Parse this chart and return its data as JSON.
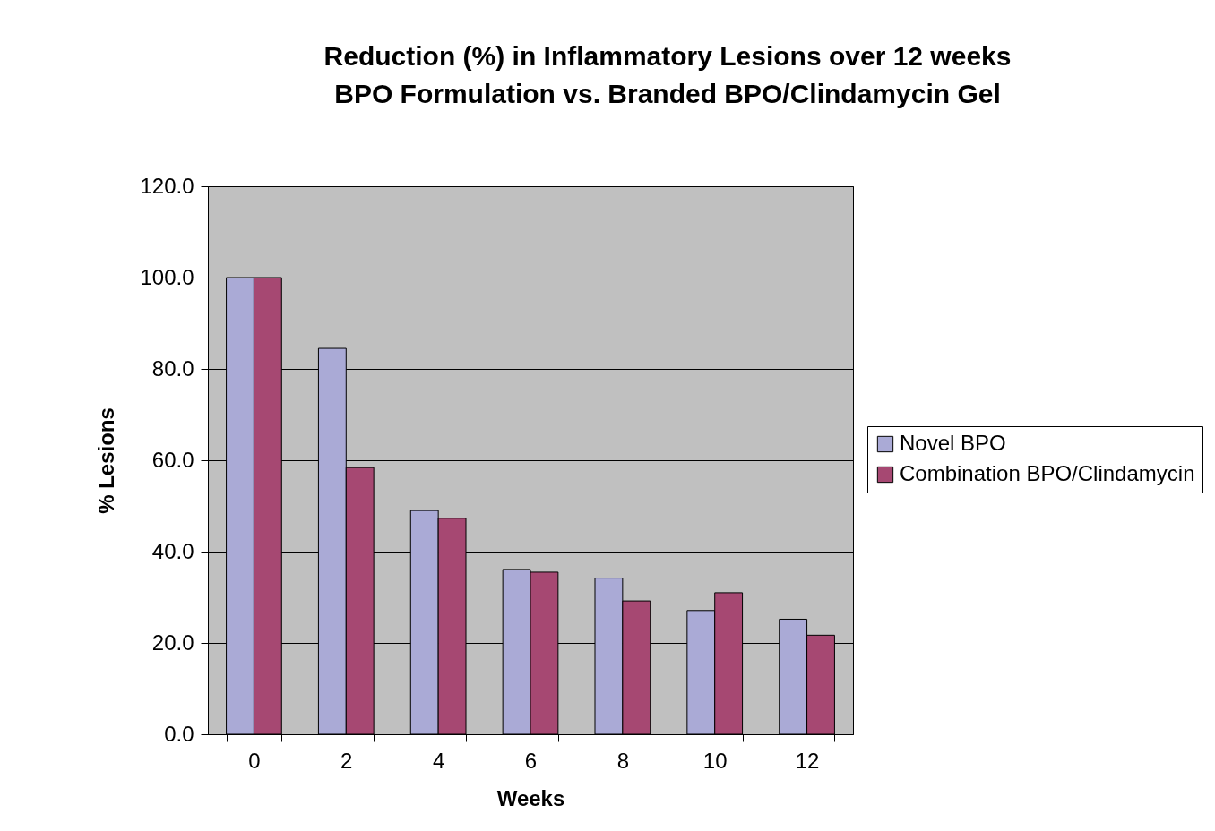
{
  "chart_data": {
    "type": "bar",
    "title": "Reduction (%) in Inflammatory Lesions  over 12 weeks",
    "subtitle": "BPO Formulation vs. Branded BPO/Clindamycin Gel",
    "xlabel": "Weeks",
    "ylabel": "% Lesions",
    "categories": [
      "0",
      "2",
      "4",
      "6",
      "8",
      "10",
      "12"
    ],
    "series": [
      {
        "name": "Novel BPO",
        "color": "#aaaad6",
        "values": [
          100,
          84.5,
          49.0,
          36.1,
          34.2,
          27.1,
          25.2
        ]
      },
      {
        "name": "Combination BPO/Clindamycin",
        "color": "#a64872",
        "values": [
          100,
          58.4,
          47.3,
          35.5,
          29.2,
          31.0,
          21.7
        ]
      }
    ],
    "ylim": [
      0,
      120
    ],
    "yticks": [
      {
        "value": 0,
        "label": "0.0"
      },
      {
        "value": 20,
        "label": "20.0"
      },
      {
        "value": 40,
        "label": "40.0"
      },
      {
        "value": 60,
        "label": "60.0"
      },
      {
        "value": 80,
        "label": "80.0"
      },
      {
        "value": 100,
        "label": "100.0"
      },
      {
        "value": 120,
        "label": "120.0"
      }
    ],
    "grid": "y",
    "legend": "right"
  }
}
